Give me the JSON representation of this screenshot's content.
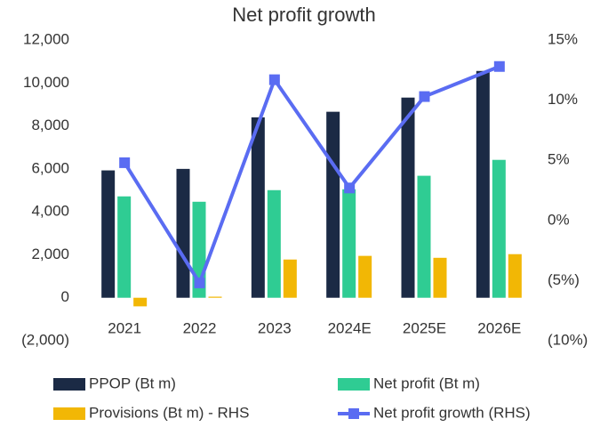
{
  "chart_data": {
    "type": "bar",
    "title": "Net profit growth",
    "categories": [
      "2021",
      "2022",
      "2023",
      "2024E",
      "2025E",
      "2026E"
    ],
    "series": [
      {
        "name": "PPOP (Bt m)",
        "color": "#1b2a45",
        "type": "bar",
        "values": [
          5930,
          6000,
          8400,
          8660,
          9320,
          10560
        ]
      },
      {
        "name": "Net profit (Bt m)",
        "color": "#2fcc93",
        "type": "bar",
        "values": [
          4720,
          4470,
          5010,
          5050,
          5680,
          6420
        ]
      },
      {
        "name": "Provisions (Bt m) - RHS",
        "color": "#f2b705",
        "type": "bar",
        "values": [
          -400,
          50,
          1780,
          1950,
          1860,
          2030
        ]
      },
      {
        "name": "Net profit growth (RHS)",
        "color": "#5a6cf2",
        "type": "line",
        "axis": "y2",
        "values": [
          4.8,
          -5.2,
          11.7,
          2.7,
          10.3,
          12.8
        ]
      }
    ],
    "ylim": [
      -2000,
      12000
    ],
    "yticks": [
      {
        "value": -2000,
        "label": "(2,000)"
      },
      0,
      {
        "value": 2000,
        "label": "2,000"
      },
      {
        "value": 4000,
        "label": "4,000"
      },
      {
        "value": 6000,
        "label": "6,000"
      },
      {
        "value": 8000,
        "label": "8,000"
      },
      {
        "value": 10000,
        "label": "10,000"
      },
      {
        "value": 12000,
        "label": "12,000"
      }
    ],
    "y2lim": [
      -10,
      15
    ],
    "y2ticks": [
      {
        "value": -10,
        "label": "(10%)"
      },
      {
        "value": -5,
        "label": "(5%)"
      },
      {
        "value": 0,
        "label": "0%"
      },
      {
        "value": 5,
        "label": "5%"
      },
      {
        "value": 10,
        "label": "10%"
      },
      {
        "value": 15,
        "label": "15%"
      }
    ],
    "grid": false
  }
}
